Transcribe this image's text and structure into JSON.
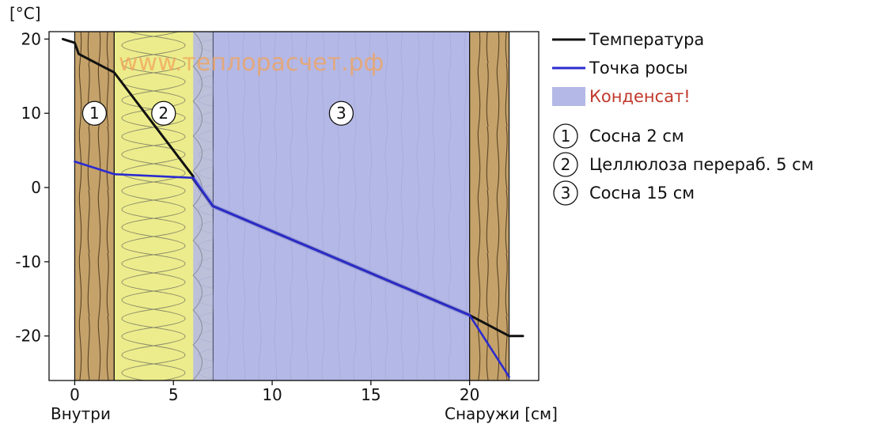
{
  "chart_data": {
    "type": "line",
    "watermark": "www.теплорасчет.рф",
    "y_unit_label": "[°C]",
    "x_label_left": "Внутри",
    "x_label_right": "Снаружи [см]",
    "xlim": [
      -1.3,
      23.5
    ],
    "ylim": [
      -26,
      21
    ],
    "x_ticks": [
      0,
      5,
      10,
      15,
      20
    ],
    "y_ticks": [
      20,
      10,
      0,
      -10,
      -20
    ],
    "grid": false,
    "legend_position": "right",
    "layers": [
      {
        "number": "1",
        "name": "Сосна 2 см",
        "x_from": 0,
        "x_to": 2,
        "material": "wood"
      },
      {
        "number": "2",
        "name": "Целлюлоза перераб. 5 см",
        "x_from": 2,
        "x_to": 7,
        "material": "insulation"
      },
      {
        "number": "3",
        "name": "Сосна 15 см",
        "x_from": 7,
        "x_to": 20,
        "material": "wood-condensate"
      },
      {
        "number": "",
        "name": "",
        "x_from": 20,
        "x_to": 22,
        "material": "wood"
      }
    ],
    "condensate_zone": {
      "x_from": 6,
      "x_to": 20
    },
    "series": [
      {
        "name": "Температура",
        "color": "#111111",
        "x": [
          -0.6,
          0.0,
          0.2,
          2.0,
          6.0,
          6.0,
          7.0,
          20.0,
          22.0,
          22.2,
          22.7
        ],
        "y": [
          20.0,
          19.5,
          18.0,
          15.5,
          1.5,
          1.2,
          -2.5,
          -17.2,
          -20.0,
          -20.0,
          -20.0
        ]
      },
      {
        "name": "Точка росы",
        "color": "#2b2bd0",
        "x": [
          0.0,
          2.0,
          6.0,
          7.0,
          20.0,
          22.0
        ],
        "y": [
          3.5,
          1.8,
          1.3,
          -2.5,
          -17.2,
          -25.5
        ]
      }
    ],
    "legend": [
      {
        "label": "Температура",
        "kind": "line",
        "color": "#111111"
      },
      {
        "label": "Точка росы",
        "kind": "line",
        "color": "#2b2bd0"
      },
      {
        "label": "Конденсат!",
        "kind": "box",
        "color": "#b4b8e6",
        "text_color": "#c0392b"
      }
    ]
  }
}
